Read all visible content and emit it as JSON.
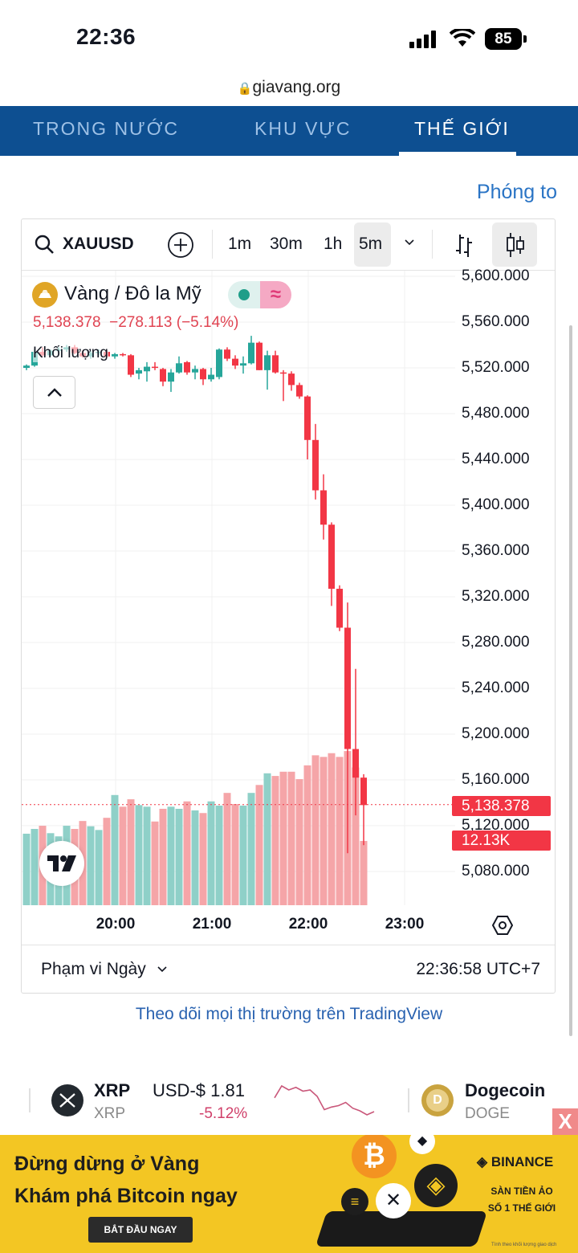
{
  "status_bar": {
    "time": "22:36",
    "battery": "85",
    "icons": [
      "cellular-signal-icon",
      "wifi-icon",
      "battery-icon"
    ]
  },
  "browser": {
    "url": "giavang.org",
    "icon": "lock-icon"
  },
  "nav": {
    "tabs": [
      {
        "label": "TRONG NƯỚC",
        "active": false
      },
      {
        "label": "KHU VỰC",
        "active": false
      },
      {
        "label": "THẾ GIỚI",
        "active": true
      }
    ]
  },
  "zoom_link": "Phóng to",
  "toolbar": {
    "symbol": "XAUUSD",
    "intervals": [
      {
        "label": "1m"
      },
      {
        "label": "30m"
      },
      {
        "label": "1h"
      },
      {
        "label": "5m",
        "selected": true
      }
    ],
    "icons": [
      "search-icon",
      "add-compare-icon",
      "chevron-down-icon",
      "bars-chart-icon",
      "candles-chart-icon"
    ]
  },
  "legend": {
    "title": "Vàng / Đô la Mỹ",
    "price": "5,138.378",
    "change": "−278.113",
    "change_pct": "(−5.14%)",
    "volume_label": "Khối lượng"
  },
  "colors": {
    "up": "#26a69a",
    "down": "#f23645",
    "up_vol": "#8fd0c8",
    "down_vol": "#f5a5a8",
    "nav_bg": "#0d4f91",
    "link": "#2a74c5",
    "ad_bg": "#f3c623"
  },
  "chart_data": {
    "type": "candlestick",
    "symbol": "XAUUSD",
    "interval": "5m",
    "ylim": [
      5080,
      5600
    ],
    "y_ticks": [
      "5,600.000",
      "5,560.000",
      "5,520.000",
      "5,480.000",
      "5,440.000",
      "5,400.000",
      "5,360.000",
      "5,320.000",
      "5,280.000",
      "5,240.000",
      "5,200.000",
      "5,160.000",
      "5,120.000",
      "5,080.000"
    ],
    "x_ticks": [
      "20:00",
      "21:00",
      "22:00",
      "23:00"
    ],
    "grid": true,
    "last_price_label": "5,138.378",
    "last_volume_label": "12.13K",
    "times": [
      "19:05",
      "19:10",
      "19:15",
      "19:20",
      "19:25",
      "19:30",
      "19:35",
      "19:40",
      "19:45",
      "19:50",
      "19:55",
      "20:00",
      "20:05",
      "20:10",
      "20:15",
      "20:20",
      "20:25",
      "20:30",
      "20:35",
      "20:40",
      "20:45",
      "20:50",
      "20:55",
      "21:00",
      "21:05",
      "21:10",
      "21:15",
      "21:20",
      "21:25",
      "21:30",
      "21:35",
      "21:40",
      "21:45",
      "21:50",
      "21:55",
      "22:00",
      "22:05",
      "22:10",
      "22:15",
      "22:20",
      "22:25",
      "22:30",
      "22:35"
    ],
    "ohlc": [
      [
        5520,
        5523,
        5518,
        5522
      ],
      [
        5522,
        5536,
        5521,
        5534
      ],
      [
        5534,
        5538,
        5530,
        5531
      ],
      [
        5531,
        5536,
        5530,
        5535
      ],
      [
        5535,
        5538,
        5533,
        5536
      ],
      [
        5536,
        5540,
        5534,
        5538
      ],
      [
        5538,
        5540,
        5532,
        5533
      ],
      [
        5533,
        5535,
        5529,
        5530
      ],
      [
        5530,
        5535,
        5528,
        5533
      ],
      [
        5533,
        5536,
        5531,
        5534
      ],
      [
        5534,
        5535,
        5529,
        5530
      ],
      [
        5530,
        5533,
        5528,
        5532
      ],
      [
        5532,
        5533,
        5530,
        5531
      ],
      [
        5531,
        5532,
        5512,
        5514
      ],
      [
        5515,
        5520,
        5510,
        5518
      ],
      [
        5517,
        5525,
        5508,
        5521
      ],
      [
        5521,
        5525,
        5518,
        5520
      ],
      [
        5519,
        5520,
        5504,
        5508
      ],
      [
        5508,
        5519,
        5499,
        5516
      ],
      [
        5516,
        5530,
        5515,
        5524
      ],
      [
        5525,
        5526,
        5514,
        5516
      ],
      [
        5516,
        5522,
        5510,
        5519
      ],
      [
        5519,
        5520,
        5505,
        5510
      ],
      [
        5510,
        5520,
        5508,
        5514
      ],
      [
        5512,
        5537,
        5510,
        5536
      ],
      [
        5536,
        5538,
        5526,
        5528
      ],
      [
        5528,
        5531,
        5519,
        5522
      ],
      [
        5522,
        5530,
        5515,
        5524
      ],
      [
        5524,
        5548,
        5523,
        5542
      ],
      [
        5542,
        5543,
        5518,
        5518
      ],
      [
        5518,
        5535,
        5501,
        5531
      ],
      [
        5531,
        5535,
        5515,
        5516
      ],
      [
        5516,
        5518,
        5491,
        5515
      ],
      [
        5515,
        5517,
        5500,
        5505
      ],
      [
        5505,
        5507,
        5493,
        5495
      ],
      [
        5495,
        5496,
        5440,
        5457
      ],
      [
        5457,
        5471,
        5405,
        5413
      ],
      [
        5413,
        5427,
        5370,
        5383
      ],
      [
        5383,
        5385,
        5312,
        5327
      ],
      [
        5327,
        5330,
        5290,
        5293
      ],
      [
        5293,
        5315,
        5096,
        5187
      ],
      [
        5187,
        5257,
        5129,
        5162
      ],
      [
        5162,
        5165,
        5103,
        5138
      ]
    ],
    "volume_k": [
      13.5,
      14.4,
      15.0,
      13.6,
      13.0,
      15.0,
      14.4,
      15.9,
      14.9,
      14.2,
      16.5,
      20.8,
      18.6,
      20.0,
      18.9,
      18.6,
      15.8,
      18.2,
      18.6,
      18.2,
      19.6,
      17.9,
      17.4,
      19.6,
      18.8,
      21.2,
      19.1,
      18.8,
      21.2,
      22.7,
      24.9,
      24.4,
      25.2,
      25.2,
      23.8,
      26.4,
      28.3,
      28.0,
      28.7,
      28.0,
      29.1,
      26.0,
      12.13
    ]
  },
  "footer": {
    "range_label": "Phạm vi Ngày",
    "clock": "22:36:58 UTC+7",
    "tv_link": "Theo dõi mọi thị trường trên TradingView"
  },
  "ticker": {
    "xrp": {
      "name": "XRP",
      "symbol": "XRP",
      "price": "USD-$ 1.81",
      "change": "-5.12%",
      "sparkline": [
        1.869,
        1.91,
        1.896,
        1.905,
        1.892,
        1.896,
        1.874,
        1.828,
        1.837,
        1.842,
        1.853,
        1.833,
        1.824,
        1.81,
        1.821
      ]
    },
    "doge": {
      "name": "Dogecoin",
      "symbol": "DOGE"
    }
  },
  "ad": {
    "line1": "Đừng dừng ở Vàng",
    "line2": "Khám phá Bitcoin ngay",
    "button": "BẮT ĐẦU NGAY",
    "brand": "BINANCE",
    "tag1": "SÀN TIỀN ẢO",
    "tag2": "SỐ 1 THẾ GIỚI",
    "fineprint": "Tính theo khối lượng giao dịch",
    "close": "X"
  }
}
